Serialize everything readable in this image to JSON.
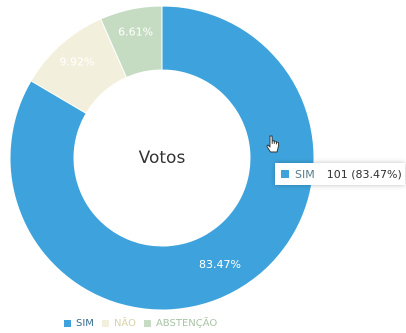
{
  "chart_data": {
    "type": "pie",
    "title": "Votos",
    "categories": [
      "SIM",
      "NÃO",
      "ABSTENÇÃO"
    ],
    "values": [
      83.47,
      9.92,
      6.61
    ],
    "slice_labels": [
      "83.47%",
      "9.92%",
      "6.61%"
    ],
    "colors": [
      "#3ea3dc",
      "#f2f0dc",
      "#c5dcc3"
    ],
    "legend": "bottom-left"
  },
  "tooltip": {
    "name": "SIM",
    "value": "101 (83.47%)",
    "color": "#3ea3dc"
  }
}
